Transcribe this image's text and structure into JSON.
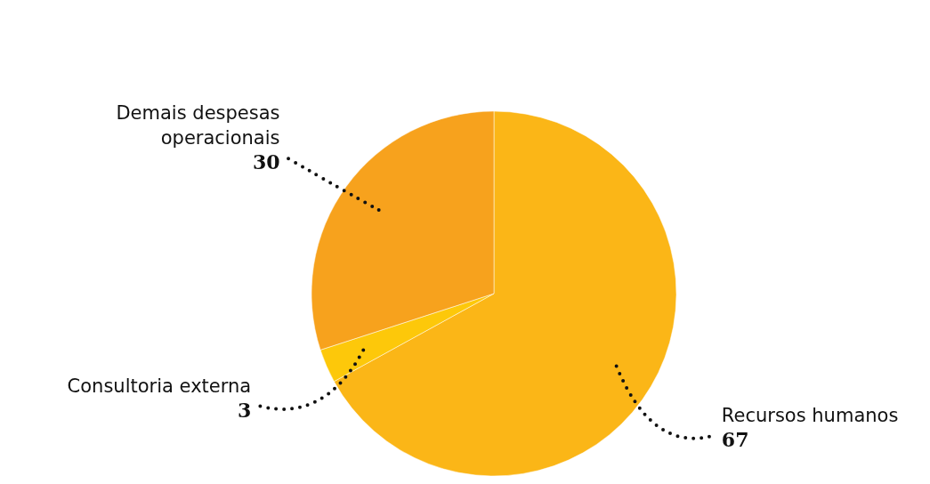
{
  "chart_data": {
    "type": "pie",
    "categories": [
      "Recursos humanos",
      "Consultoria externa",
      "Demais despesas operacionais"
    ],
    "values": [
      67,
      3,
      30
    ],
    "colors": [
      "#fbb617",
      "#fdc80a",
      "#f7a21d"
    ],
    "data_labels": true
  }
}
